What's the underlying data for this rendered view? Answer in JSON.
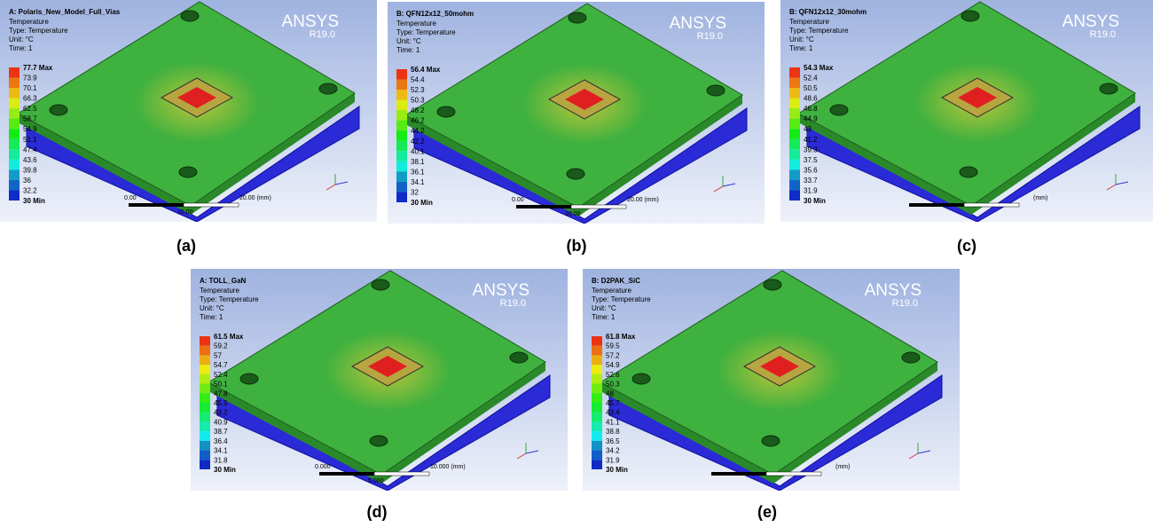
{
  "panels": [
    {
      "title": "A: Polaris_New_Model_Full_Vias",
      "info": [
        "Temperature",
        "Type: Temperature",
        "Unit: °C",
        "Time: 1"
      ],
      "logo": "ANSYS",
      "version": "R19.0",
      "legend": [
        "77.7 Max",
        "73.9",
        "70.1",
        "66.3",
        "62.5",
        "58.7",
        "54.9",
        "51.1",
        "47.4",
        "43.6",
        "39.8",
        "36",
        "32.2",
        "30 Min"
      ],
      "scale": [
        "0.00",
        "20.00 (mm)",
        "10.00"
      ],
      "caption": "(a)"
    },
    {
      "title": "B: QFN12x12_50mohm",
      "info": [
        "Temperature",
        "Type: Temperature",
        "Unit: °C",
        "Time: 1"
      ],
      "logo": "ANSYS",
      "version": "R19.0",
      "legend": [
        "56.4 Max",
        "54.4",
        "52.3",
        "50.3",
        "48.2",
        "46.2",
        "44.2",
        "42.2",
        "40.1",
        "38.1",
        "36.1",
        "34.1",
        "32",
        "30 Min"
      ],
      "scale": [
        "0.00",
        "20.00 (mm)",
        "10.00"
      ],
      "caption": "(b)"
    },
    {
      "title": "B: QFN12x12_30mohm",
      "info": [
        "Temperature",
        "Type: Temperature",
        "Unit: °C",
        "Time: 1"
      ],
      "logo": "ANSYS",
      "version": "R19.0",
      "legend": [
        "54.3 Max",
        "52.4",
        "50.5",
        "48.6",
        "46.8",
        "44.9",
        "43",
        "41.2",
        "39.3",
        "37.5",
        "35.6",
        "33.7",
        "31.9",
        "30 Min"
      ],
      "scale": [
        "(mm)"
      ],
      "caption": "(c)"
    },
    {
      "title": "A: TOLL_GaN",
      "info": [
        "Temperature",
        "Type: Temperature",
        "Unit: °C",
        "Time: 1"
      ],
      "logo": "ANSYS",
      "version": "R19.0",
      "legend": [
        "61.5 Max",
        "59.2",
        "57",
        "54.7",
        "52.4",
        "50.1",
        "47.8",
        "45.5",
        "43.2",
        "40.9",
        "38.7",
        "36.4",
        "34.1",
        "31.8",
        "30 Min"
      ],
      "scale": [
        "0.000",
        "10.000 (mm)",
        "5.000"
      ],
      "caption": "(d)"
    },
    {
      "title": "B: D2PAK_SiC",
      "info": [
        "Temperature",
        "Type: Temperature",
        "Unit: °C",
        "Time: 1"
      ],
      "logo": "ANSYS",
      "version": "R19.0",
      "legend": [
        "61.8 Max",
        "59.5",
        "57.2",
        "54.9",
        "52.6",
        "50.3",
        "48",
        "45.7",
        "43.4",
        "41.1",
        "38.8",
        "36.5",
        "34.2",
        "31.9",
        "30 Min"
      ],
      "scale": [
        "(mm)"
      ],
      "caption": "(e)"
    }
  ]
}
